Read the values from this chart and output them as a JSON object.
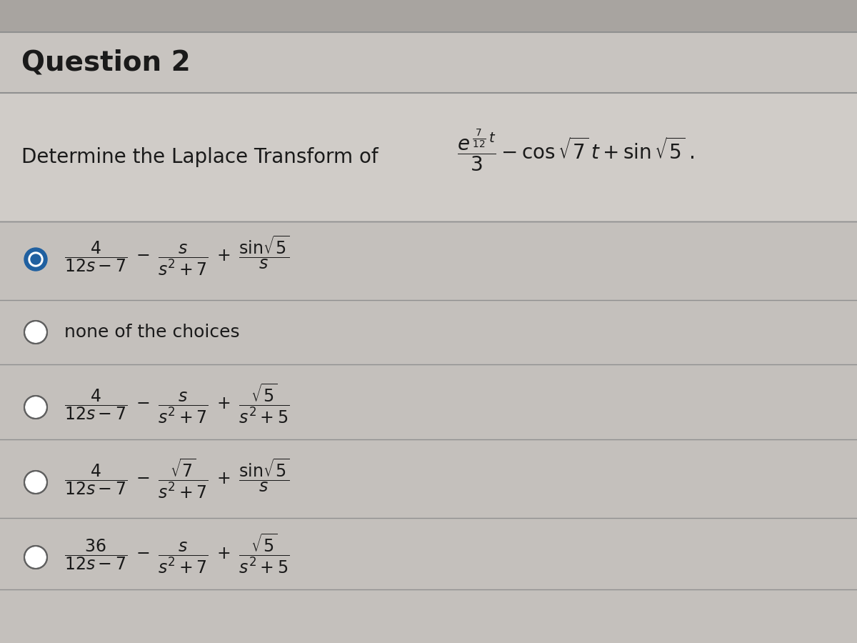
{
  "title": "Question 2",
  "question": "Determine the Laplace Transform of",
  "bg_color": "#b8b4b0",
  "header_bg": "#c8c4c0",
  "question_bg": "#d4d0cc",
  "choice_bg": "#c8c4c0",
  "text_color": "#1a1a1a",
  "divider_color": "#a0a0a0",
  "radio_fill": "#2060a0",
  "radio_border": "#606060",
  "title_fontsize": 28,
  "question_fontsize": 20,
  "choice_fontsize": 17,
  "none_fontsize": 18
}
